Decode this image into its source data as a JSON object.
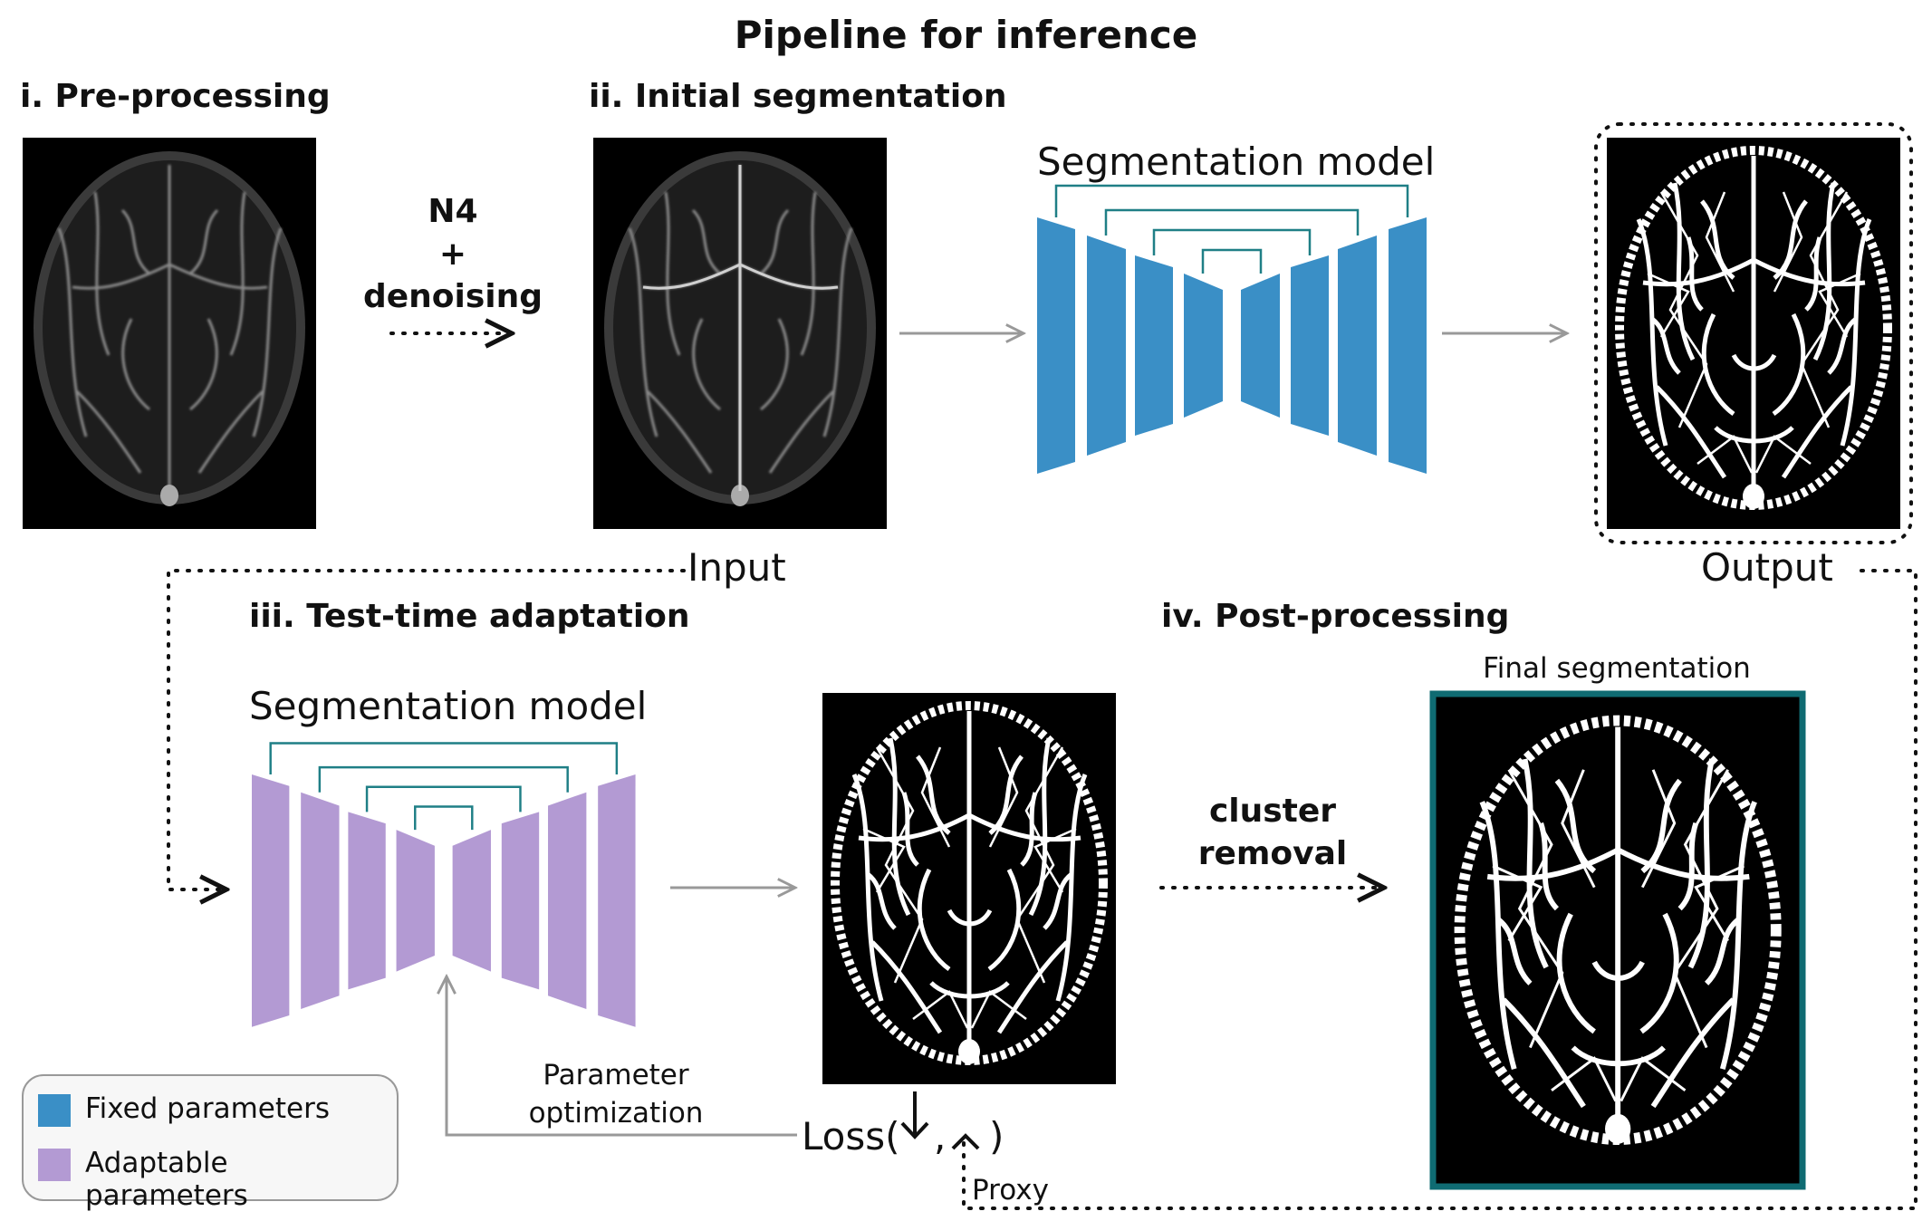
{
  "title": "Pipeline for inference",
  "stages": {
    "pre": "i. Pre-processing",
    "initial": "ii. Initial segmentation",
    "tta": "iii. Test-time adaptation",
    "post": "iv. Post-processing"
  },
  "ops": {
    "n4_line1": "N4",
    "n4_line2": "+",
    "n4_line3": "denoising",
    "cluster_line1": "cluster",
    "cluster_line2": "removal"
  },
  "labels": {
    "model_top": "Segmentation model",
    "model_bottom": "Segmentation model",
    "input": "Input",
    "output": "Output",
    "final": "Final segmentation",
    "param_line1": "Parameter",
    "param_line2": "optimization",
    "loss_open": "Loss(",
    "loss_comma": ",",
    "loss_close": ")",
    "proxy": "Proxy"
  },
  "legend": {
    "fixed": "Fixed parameters",
    "adaptable": "Adaptable parameters"
  },
  "colors": {
    "fixed": "#3a8fc6",
    "adaptable": "#b39ad3",
    "skip": "#1f7f86",
    "final_frame": "#0f6b72",
    "arrow_gray": "#999999"
  }
}
